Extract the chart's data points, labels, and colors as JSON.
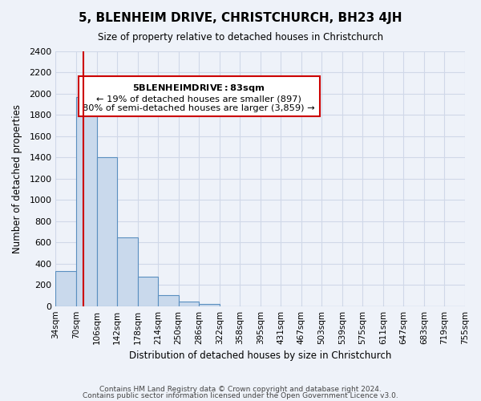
{
  "title": "5, BLENHEIM DRIVE, CHRISTCHURCH, BH23 4JH",
  "subtitle": "Size of property relative to detached houses in Christchurch",
  "xlabel": "Distribution of detached houses by size in Christchurch",
  "ylabel": "Number of detached properties",
  "bin_labels": [
    "34sqm",
    "70sqm",
    "106sqm",
    "142sqm",
    "178sqm",
    "214sqm",
    "250sqm",
    "286sqm",
    "322sqm",
    "358sqm",
    "395sqm",
    "431sqm",
    "467sqm",
    "503sqm",
    "539sqm",
    "575sqm",
    "611sqm",
    "647sqm",
    "683sqm",
    "719sqm",
    "755sqm"
  ],
  "bar_values": [
    330,
    1970,
    1400,
    650,
    280,
    105,
    45,
    20,
    0,
    0,
    0,
    0,
    0,
    0,
    0,
    0,
    0,
    0,
    0,
    0
  ],
  "bar_color": "#c9d9ec",
  "bar_edge_color": "#5a8fc0",
  "grid_color": "#d0d8e8",
  "background_color": "#eef2f9",
  "red_line_x": 1,
  "annotation_title": "5 BLENHEIM DRIVE: 83sqm",
  "annotation_line1": "← 19% of detached houses are smaller (897)",
  "annotation_line2": "80% of semi-detached houses are larger (3,859) →",
  "annotation_box_color": "#ffffff",
  "annotation_border_color": "#cc0000",
  "ylim": [
    0,
    2400
  ],
  "yticks": [
    0,
    200,
    400,
    600,
    800,
    1000,
    1200,
    1400,
    1600,
    1800,
    2000,
    2200,
    2400
  ],
  "footer1": "Contains HM Land Registry data © Crown copyright and database right 2024.",
  "footer2": "Contains public sector information licensed under the Open Government Licence v3.0."
}
